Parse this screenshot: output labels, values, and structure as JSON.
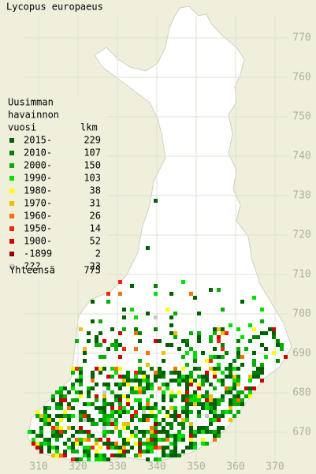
{
  "title": "Lycopus europaeus",
  "legend": {
    "heading": [
      "Uusimman",
      "havainnon",
      "vuosi"
    ],
    "count_heading": "lkm",
    "items": [
      {
        "label": "2015-",
        "count": 229,
        "color": "#006000"
      },
      {
        "label": "2010-",
        "count": 107,
        "color": "#008000"
      },
      {
        "label": "2000-",
        "count": 150,
        "color": "#00b000"
      },
      {
        "label": "1990-",
        "count": 103,
        "color": "#00e000"
      },
      {
        "label": "1980-",
        "count": 38,
        "color": "#ffff00"
      },
      {
        "label": "1970-",
        "count": 31,
        "color": "#f0c000"
      },
      {
        "label": "1960-",
        "count": 26,
        "color": "#ff7000"
      },
      {
        "label": "1950-",
        "count": 14,
        "color": "#ff2000"
      },
      {
        "label": "1900-",
        "count": 52,
        "color": "#d00000"
      },
      {
        "label": "-1899",
        "count": 2,
        "color": "#900000"
      },
      {
        "label": "???",
        "count": 23,
        "color": "#c8c8c8"
      }
    ],
    "total": {
      "label": "Yhteensä",
      "count": 775
    }
  },
  "grid": {
    "x_labels": [
      "310",
      "320",
      "330",
      "340",
      "350",
      "360",
      "370"
    ],
    "y_labels": [
      "770",
      "760",
      "750",
      "740",
      "730",
      "720",
      "710",
      "700",
      "690",
      "680",
      "670"
    ]
  }
}
